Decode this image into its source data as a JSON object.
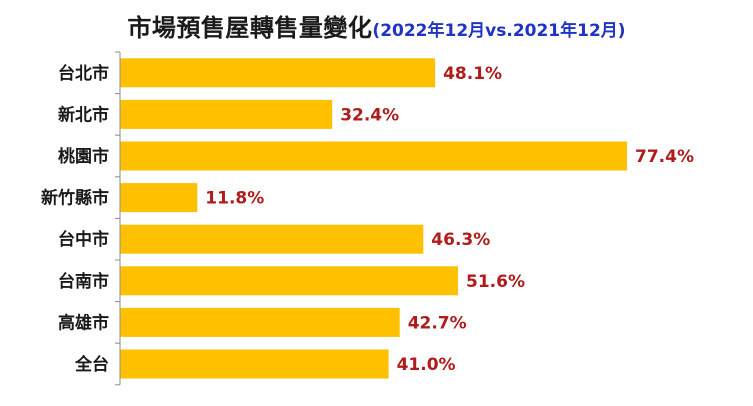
{
  "chart_data": {
    "type": "bar",
    "orientation": "horizontal",
    "title": "市場預售屋轉售量變化",
    "subtitle": "(2022年12月vs.2021年12月)",
    "categories": [
      "台北市",
      "新北市",
      "桃園市",
      "新竹縣市",
      "台中市",
      "台南市",
      "高雄市",
      "全台"
    ],
    "values": [
      48.1,
      32.4,
      77.4,
      11.8,
      46.3,
      51.6,
      42.7,
      41.0
    ],
    "data_labels": [
      "48.1%",
      "32.4%",
      "77.4%",
      "11.8%",
      "46.3%",
      "51.6%",
      "42.7%",
      "41.0%"
    ],
    "unit": "%",
    "xlim": [
      0,
      80
    ],
    "grid": false,
    "legend": "none"
  },
  "colors": {
    "bar": "#ffc000",
    "value_label": "#b01c1c",
    "title": "#1a1a1a",
    "subtitle": "#1f33c4",
    "axis": "#8c8c8c"
  }
}
